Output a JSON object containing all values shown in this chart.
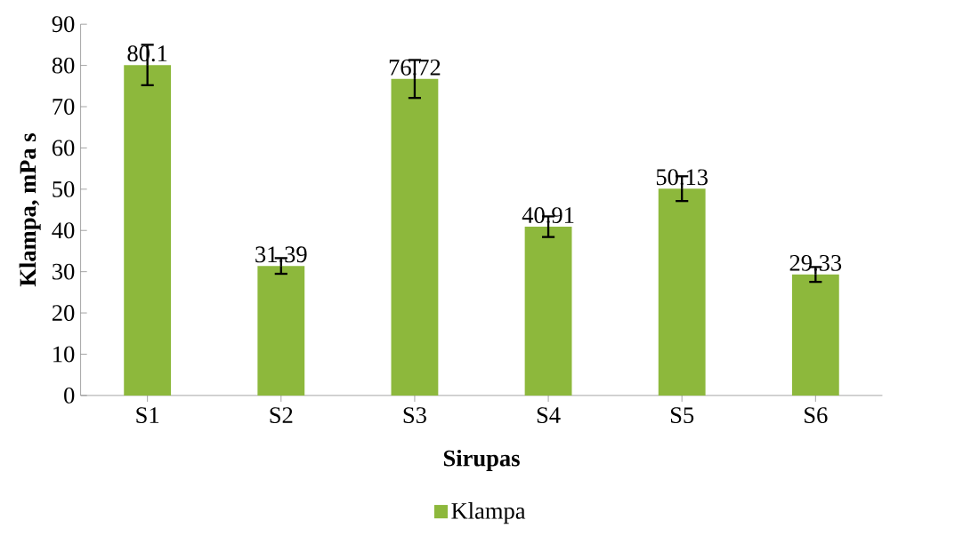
{
  "chart_data": {
    "type": "bar",
    "xlabel": "Sirupas",
    "ylabel": "Klampa, mPa s",
    "categories": [
      "S1",
      "S2",
      "S3",
      "S4",
      "S5",
      "S6"
    ],
    "series": [
      {
        "name": "Klampa",
        "color": "#8db83c",
        "values": [
          80.1,
          31.39,
          76.72,
          40.91,
          50.13,
          29.33
        ],
        "errors": [
          4.9,
          1.9,
          4.6,
          2.5,
          3.0,
          1.8
        ]
      }
    ],
    "ylim": [
      0,
      90
    ],
    "yticks": [
      0,
      10,
      20,
      30,
      40,
      50,
      60,
      70,
      80,
      90
    ],
    "data_labels": true,
    "legend": "bottom",
    "grid": false
  }
}
